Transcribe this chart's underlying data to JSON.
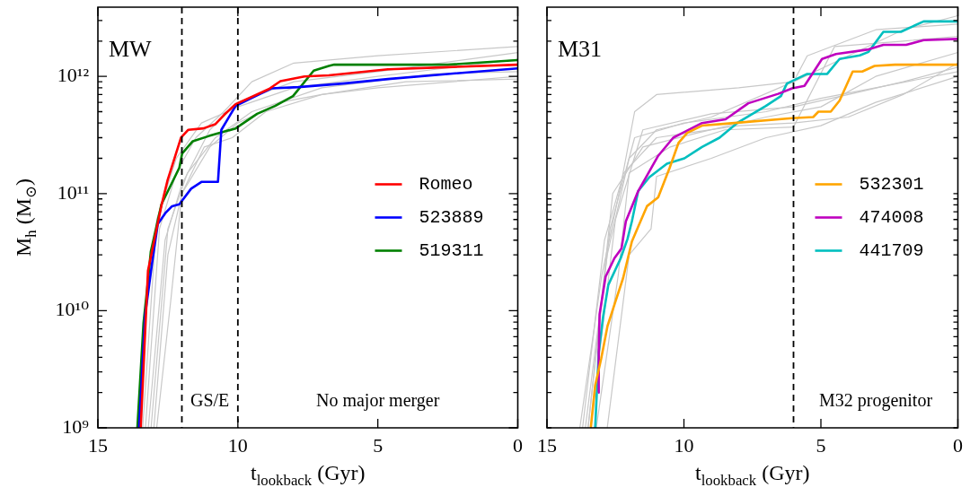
{
  "chart_data": [
    {
      "type": "line",
      "xlabel": "t$_{lookback}$ (Gyr)",
      "ylabel": "M$_{h}$ (M$_{⊙}$)",
      "log": "y",
      "legend": "right",
      "xlim": [
        15,
        0
      ],
      "xticks": [
        15,
        10,
        5,
        0
      ],
      "ylim": [
        1000000000.0,
        3900000000000.0
      ],
      "yticks": [
        {
          "value": 1000000000.0,
          "label": "10⁹"
        },
        {
          "value": 2000000000.0,
          "label": null
        },
        {
          "value": 3000000000.0,
          "label": null
        },
        {
          "value": 4000000000.0,
          "label": null
        },
        {
          "value": 5000000000.0,
          "label": null
        },
        {
          "value": 6000000000.0,
          "label": null
        },
        {
          "value": 7000000000.0,
          "label": null
        },
        {
          "value": 8000000000.0,
          "label": null
        },
        {
          "value": 9000000000.0,
          "label": null
        },
        {
          "value": 10000000000.0,
          "label": "10¹⁰"
        },
        {
          "value": 20000000000.0,
          "label": null
        },
        {
          "value": 30000000000.0,
          "label": null
        },
        {
          "value": 40000000000.0,
          "label": null
        },
        {
          "value": 50000000000.0,
          "label": null
        },
        {
          "value": 60000000000.0,
          "label": null
        },
        {
          "value": 70000000000.0,
          "label": null
        },
        {
          "value": 80000000000.0,
          "label": null
        },
        {
          "value": 90000000000.0,
          "label": null
        },
        {
          "value": 100000000000.0,
          "label": "10¹¹"
        },
        {
          "value": 200000000000.0,
          "label": null
        },
        {
          "value": 300000000000.0,
          "label": null
        },
        {
          "value": 400000000000.0,
          "label": null
        },
        {
          "value": 500000000000.0,
          "label": null
        },
        {
          "value": 600000000000.0,
          "label": null
        },
        {
          "value": 700000000000.0,
          "label": null
        },
        {
          "value": 800000000000.0,
          "label": null
        },
        {
          "value": 900000000000.0,
          "label": null
        },
        {
          "value": 1000000000000.0,
          "label": "10¹²"
        },
        {
          "value": 2000000000000.0,
          "label": null
        },
        {
          "value": 3000000000000.0,
          "label": null
        }
      ],
      "ref_lines": [
        {
          "axis": "x",
          "value": 12,
          "color": "#000000",
          "line_style": "dashed"
        },
        {
          "axis": "x",
          "value": 10,
          "color": "#000000",
          "line_style": "dashed"
        }
      ],
      "annotations": [
        "MW",
        "GS/E",
        "No major merger"
      ],
      "series": [
        {
          "name": "Romeo",
          "color": "#ff0000",
          "x": [
            13.47,
            13.21,
            12.73,
            12.51,
            12.03,
            11.77,
            11.23,
            10.81,
            10.49,
            10.08,
            8.89,
            8.48,
            7.62,
            6.75,
            4.64,
            2.5,
            0
          ],
          "values": [
            1000000000.0,
            22000000000.0,
            79000000000.0,
            130000000000.0,
            300000000000.0,
            350000000000.0,
            360000000000.0,
            390000000000.0,
            470000000000.0,
            580000000000.0,
            780000000000.0,
            910000000000.0,
            1000000000000.0,
            1020000000000.0,
            1150000000000.0,
            1200000000000.0,
            1260000000000.0
          ]
        },
        {
          "name": "523889",
          "color": "#0000ff",
          "x": [
            13.53,
            13.31,
            13.05,
            12.86,
            12.57,
            12.35,
            12.09,
            11.67,
            11.29,
            10.71,
            10.59,
            10.08,
            9.53,
            8.8,
            7.84,
            6.24,
            4.64,
            2.5,
            0
          ],
          "values": [
            1000000000.0,
            9300000000.0,
            27000000000.0,
            55000000000.0,
            69000000000.0,
            78000000000.0,
            81000000000.0,
            110000000000.0,
            126000000000.0,
            126000000000.0,
            350000000000.0,
            560000000000.0,
            650000000000.0,
            790000000000.0,
            810000000000.0,
            870000000000.0,
            950000000000.0,
            1050000000000.0,
            1170000000000.0
          ]
        },
        {
          "name": "519311",
          "color": "#008000",
          "x": [
            13.59,
            13.37,
            13.21,
            13.11,
            12.73,
            12.09,
            11.99,
            11.61,
            11.03,
            10.08,
            9.31,
            8.67,
            8.03,
            7.29,
            6.75,
            6.56,
            2.5,
            0
          ],
          "values": [
            1000000000.0,
            7900000000.0,
            18000000000.0,
            32000000000.0,
            81000000000.0,
            166000000000.0,
            220000000000.0,
            280000000000.0,
            310000000000.0,
            360000000000.0,
            480000000000.0,
            560000000000.0,
            680000000000.0,
            1120000000000.0,
            1230000000000.0,
            1260000000000.0,
            1260000000000.0,
            1380000000000.0
          ]
        },
        {
          "color": "#c8c8c8",
          "x": [
            13.3,
            12.8,
            12.2,
            11.5,
            10.5,
            9.5,
            8,
            5,
            0
          ],
          "values": [
            1000000000.0,
            50000000000.0,
            150000000000.0,
            300000000000.0,
            500000000000.0,
            900000000000.0,
            1300000000000.0,
            1500000000000.0,
            1800000000000.0
          ]
        },
        {
          "color": "#c8c8c8",
          "x": [
            13.2,
            12.6,
            12,
            11,
            10,
            8,
            5,
            0
          ],
          "values": [
            1000000000.0,
            40000000000.0,
            120000000000.0,
            350000000000.0,
            600000000000.0,
            900000000000.0,
            1100000000000.0,
            1600000000000.0
          ]
        },
        {
          "color": "#c8c8c8",
          "x": [
            13,
            12.5,
            12,
            11,
            10,
            8.5,
            7,
            5,
            0
          ],
          "values": [
            1000000000.0,
            30000000000.0,
            100000000000.0,
            250000000000.0,
            400000000000.0,
            600000000000.0,
            700000000000.0,
            800000000000.0,
            1000000000000.0
          ]
        },
        {
          "color": "#c8c8c8",
          "x": [
            12.9,
            12.4,
            12,
            11.2,
            10.2,
            9,
            7,
            4,
            0
          ],
          "values": [
            1000000000.0,
            12000000000.0,
            100000000000.0,
            250000000000.0,
            300000000000.0,
            500000000000.0,
            700000000000.0,
            900000000000.0,
            950000000000.0
          ]
        },
        {
          "color": "#c8c8c8",
          "x": [
            13.4,
            12.9,
            12.2,
            11.3,
            10,
            8,
            5,
            0
          ],
          "values": [
            1000000000.0,
            60000000000.0,
            200000000000.0,
            400000000000.0,
            550000000000.0,
            800000000000.0,
            1000000000000.0,
            1400000000000.0
          ]
        },
        {
          "color": "#c8c8c8",
          "x": [
            13.1,
            12.5,
            11.8,
            10.8,
            9.5,
            7,
            3,
            0
          ],
          "values": [
            1000000000.0,
            50000000000.0,
            150000000000.0,
            300000000000.0,
            500000000000.0,
            800000000000.0,
            1050000000000.0,
            1100000000000.0
          ]
        }
      ]
    },
    {
      "type": "line",
      "xlabel": "t$_{lookback}$ (Gyr)",
      "log": "y",
      "legend": "right",
      "tick_labels": "x",
      "xlim": [
        15,
        0
      ],
      "xticks": [
        15,
        10,
        5,
        0
      ],
      "ylim": [
        1000000000.0,
        3900000000000.0
      ],
      "yticks": [
        {
          "value": 1000000000.0,
          "label": null
        },
        {
          "value": 2000000000.0,
          "label": null
        },
        {
          "value": 3000000000.0,
          "label": null
        },
        {
          "value": 4000000000.0,
          "label": null
        },
        {
          "value": 5000000000.0,
          "label": null
        },
        {
          "value": 6000000000.0,
          "label": null
        },
        {
          "value": 7000000000.0,
          "label": null
        },
        {
          "value": 8000000000.0,
          "label": null
        },
        {
          "value": 9000000000.0,
          "label": null
        },
        {
          "value": 10000000000.0,
          "label": null
        },
        {
          "value": 20000000000.0,
          "label": null
        },
        {
          "value": 30000000000.0,
          "label": null
        },
        {
          "value": 40000000000.0,
          "label": null
        },
        {
          "value": 50000000000.0,
          "label": null
        },
        {
          "value": 60000000000.0,
          "label": null
        },
        {
          "value": 70000000000.0,
          "label": null
        },
        {
          "value": 80000000000.0,
          "label": null
        },
        {
          "value": 90000000000.0,
          "label": null
        },
        {
          "value": 100000000000.0,
          "label": null
        },
        {
          "value": 200000000000.0,
          "label": null
        },
        {
          "value": 300000000000.0,
          "label": null
        },
        {
          "value": 400000000000.0,
          "label": null
        },
        {
          "value": 500000000000.0,
          "label": null
        },
        {
          "value": 600000000000.0,
          "label": null
        },
        {
          "value": 700000000000.0,
          "label": null
        },
        {
          "value": 800000000000.0,
          "label": null
        },
        {
          "value": 900000000000.0,
          "label": null
        },
        {
          "value": 1000000000000.0,
          "label": null
        },
        {
          "value": 2000000000000.0,
          "label": null
        },
        {
          "value": 3000000000000.0,
          "label": null
        }
      ],
      "ref_lines": [
        {
          "axis": "x",
          "value": 6,
          "color": "#000000",
          "line_style": "dashed"
        }
      ],
      "annotations": [
        "M31",
        "M32 progenitor"
      ],
      "series": [
        {
          "name": "532301",
          "color": "#ffa500",
          "x": [
            13.4,
            13.24,
            13.02,
            12.79,
            12.54,
            12.22,
            11.9,
            11.35,
            10.94,
            10.52,
            10.2,
            9.88,
            9.34,
            8.16,
            6.05,
            5.28,
            5.09,
            4.64,
            4.32,
            3.84,
            3.49,
            3.04,
            2.3,
            0
          ],
          "values": [
            1000000000.0,
            2300000000.0,
            3900000000.0,
            7400000000.0,
            11200000000.0,
            19000000000.0,
            39000000000.0,
            78000000000.0,
            93000000000.0,
            166000000000.0,
            270000000000.0,
            330000000000.0,
            380000000000.0,
            400000000000.0,
            440000000000.0,
            450000000000.0,
            500000000000.0,
            500000000000.0,
            620000000000.0,
            1100000000000.0,
            1100000000000.0,
            1230000000000.0,
            1260000000000.0,
            1260000000000.0
          ]
        },
        {
          "name": "474008",
          "color": "#bf00bf",
          "x": [
            13.13,
            13.11,
            13.08,
            12.86,
            12.54,
            12.28,
            12.12,
            11.67,
            10.94,
            10.39,
            9.34,
            8.48,
            7.65,
            6.56,
            6.05,
            5.6,
            4.96,
            4.45,
            3.26,
            2.72,
            1.89,
            1.25,
            0
          ],
          "values": [
            2000000000.0,
            4400000000.0,
            9300000000.0,
            19500000000.0,
            28000000000.0,
            34000000000.0,
            58000000000.0,
            105000000000.0,
            210000000000.0,
            300000000000.0,
            400000000000.0,
            430000000000.0,
            590000000000.0,
            710000000000.0,
            790000000000.0,
            830000000000.0,
            1410000000000.0,
            1550000000000.0,
            1700000000000.0,
            1860000000000.0,
            1860000000000.0,
            2040000000000.0,
            2090000000000.0
          ]
        },
        {
          "name": "441709",
          "color": "#00bfbf",
          "x": [
            13.24,
            13.18,
            13.11,
            12.95,
            12.76,
            12.31,
            12.06,
            11.9,
            11.67,
            11.26,
            10.62,
            9.98,
            9.34,
            8.7,
            8.06,
            7.01,
            6.46,
            6.24,
            5.5,
            4.77,
            4.32,
            3.58,
            3.26,
            2.72,
            2.08,
            1.25,
            0
          ],
          "values": [
            1000000000.0,
            2000000000.0,
            4400000000.0,
            8900000000.0,
            16600000000.0,
            28000000000.0,
            41000000000.0,
            58000000000.0,
            105000000000.0,
            138000000000.0,
            180000000000.0,
            200000000000.0,
            250000000000.0,
            300000000000.0,
            400000000000.0,
            560000000000.0,
            680000000000.0,
            870000000000.0,
            1050000000000.0,
            1050000000000.0,
            1410000000000.0,
            1510000000000.0,
            1620000000000.0,
            2400000000000.0,
            2400000000000.0,
            2950000000000.0,
            2950000000000.0
          ]
        },
        {
          "color": "#c8c8c8",
          "x": [
            13.8,
            13,
            12.3,
            11.8,
            11,
            8,
            6,
            4,
            2,
            0
          ],
          "values": [
            1000000000.0,
            20000000000.0,
            120000000000.0,
            500000000000.0,
            700000000000.0,
            800000000000.0,
            900000000000.0,
            1500000000000.0,
            2500000000000.0,
            3300000000000.0
          ]
        },
        {
          "color": "#c8c8c8",
          "x": [
            13.6,
            12.8,
            12,
            11,
            9,
            6,
            5.5,
            3,
            0
          ],
          "values": [
            1000000000.0,
            30000000000.0,
            200000000000.0,
            350000000000.0,
            450000000000.0,
            900000000000.0,
            1500000000000.0,
            2500000000000.0,
            2800000000000.0
          ]
        },
        {
          "color": "#c8c8c8",
          "x": [
            13.5,
            12.7,
            11.8,
            10,
            7,
            5,
            3,
            0
          ],
          "values": [
            1000000000.0,
            50000000000.0,
            300000000000.0,
            400000000000.0,
            500000000000.0,
            650000000000.0,
            800000000000.0,
            1100000000000.0
          ]
        },
        {
          "color": "#c8c8c8",
          "x": [
            13.4,
            12.5,
            11.5,
            9,
            6,
            4,
            2,
            0
          ],
          "values": [
            1000000000.0,
            60000000000.0,
            350000000000.0,
            480000000000.0,
            550000000000.0,
            700000000000.0,
            900000000000.0,
            1200000000000.0
          ]
        },
        {
          "color": "#c8c8c8",
          "x": [
            13.7,
            12.9,
            12.2,
            11,
            8,
            6,
            4,
            2,
            0
          ],
          "values": [
            1000000000.0,
            40000000000.0,
            150000000000.0,
            300000000000.0,
            380000000000.0,
            400000000000.0,
            450000000000.0,
            700000000000.0,
            1300000000000.0
          ]
        },
        {
          "color": "#c8c8c8",
          "x": [
            12.8,
            12,
            11.2,
            11,
            9,
            7,
            5,
            3,
            0
          ],
          "values": [
            1000000000.0,
            30000000000.0,
            50000000000.0,
            140000000000.0,
            200000000000.0,
            300000000000.0,
            380000000000.0,
            600000000000.0,
            1000000000000.0
          ]
        },
        {
          "color": "#c8c8c8",
          "x": [
            13.2,
            12.4,
            12,
            10.5,
            8.5,
            6,
            4.5,
            2,
            0
          ],
          "values": [
            1000000000.0,
            20000000000.0,
            150000000000.0,
            250000000000.0,
            350000000000.0,
            370000000000.0,
            1800000000000.0,
            2000000000000.0,
            2200000000000.0
          ]
        },
        {
          "color": "#c8c8c8",
          "x": [
            13.5,
            12.6,
            11.5,
            9.5,
            7,
            5,
            3,
            0
          ],
          "values": [
            1000000000.0,
            100000000000.0,
            250000000000.0,
            330000000000.0,
            450000000000.0,
            550000000000.0,
            1000000000000.0,
            1600000000000.0
          ]
        }
      ]
    }
  ]
}
